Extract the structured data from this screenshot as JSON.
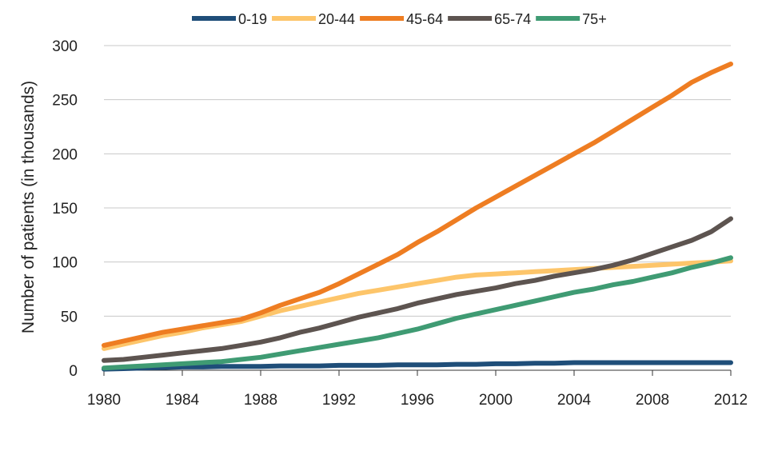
{
  "chart_data": {
    "type": "line",
    "title": "",
    "xlabel": "",
    "ylabel": "Number of patients (in thousands)",
    "xlim": [
      1980,
      2012
    ],
    "ylim": [
      0,
      300
    ],
    "x_ticks": [
      "1980",
      "1984",
      "1988",
      "1992",
      "1996",
      "2000",
      "2004",
      "2008",
      "2012"
    ],
    "y_ticks": [
      "0",
      "50",
      "100",
      "150",
      "200",
      "250",
      "300"
    ],
    "grid": "horizontal",
    "legend_position": "top-center",
    "x": [
      1980,
      1981,
      1982,
      1983,
      1984,
      1985,
      1986,
      1987,
      1988,
      1989,
      1990,
      1991,
      1992,
      1993,
      1994,
      1995,
      1996,
      1997,
      1998,
      1999,
      2000,
      2001,
      2002,
      2003,
      2004,
      2005,
      2006,
      2007,
      2008,
      2009,
      2010,
      2011,
      2012
    ],
    "series": [
      {
        "name": "0-19",
        "color": "#1f4e79",
        "values": [
          1,
          1.5,
          2,
          2.5,
          3,
          3,
          3.5,
          3.5,
          3.5,
          4,
          4,
          4,
          4.5,
          4.5,
          4.5,
          5,
          5,
          5,
          5.5,
          5.5,
          6,
          6,
          6.5,
          6.5,
          7,
          7,
          7,
          7,
          7,
          7,
          7,
          7,
          7
        ]
      },
      {
        "name": "20-44",
        "color": "#fdc56a",
        "values": [
          20,
          24,
          28,
          32,
          35,
          39,
          42,
          45,
          50,
          55,
          59,
          63,
          67,
          71,
          74,
          77,
          80,
          83,
          86,
          88,
          89,
          90,
          91,
          92,
          93,
          94,
          95,
          96,
          97,
          98,
          99,
          100,
          101
        ]
      },
      {
        "name": "45-64",
        "color": "#ee7d22",
        "values": [
          23,
          27,
          31,
          35,
          38,
          41,
          44,
          47,
          53,
          60,
          66,
          72,
          80,
          89,
          98,
          107,
          118,
          128,
          139,
          150,
          160,
          170,
          180,
          190,
          200,
          210,
          221,
          232,
          243,
          254,
          266,
          275,
          283
        ]
      },
      {
        "name": "65-74",
        "color": "#5d5450",
        "values": [
          9,
          10,
          12,
          14,
          16,
          18,
          20,
          23,
          26,
          30,
          35,
          39,
          44,
          49,
          53,
          57,
          62,
          66,
          70,
          73,
          76,
          80,
          83,
          87,
          90,
          93,
          97,
          102,
          108,
          114,
          120,
          128,
          140
        ]
      },
      {
        "name": "75+",
        "color": "#3f9b73",
        "values": [
          2,
          3,
          4,
          5,
          6,
          7,
          8,
          10,
          12,
          15,
          18,
          21,
          24,
          27,
          30,
          34,
          38,
          43,
          48,
          52,
          56,
          60,
          64,
          68,
          72,
          75,
          79,
          82,
          86,
          90,
          95,
          99,
          104
        ]
      }
    ]
  }
}
